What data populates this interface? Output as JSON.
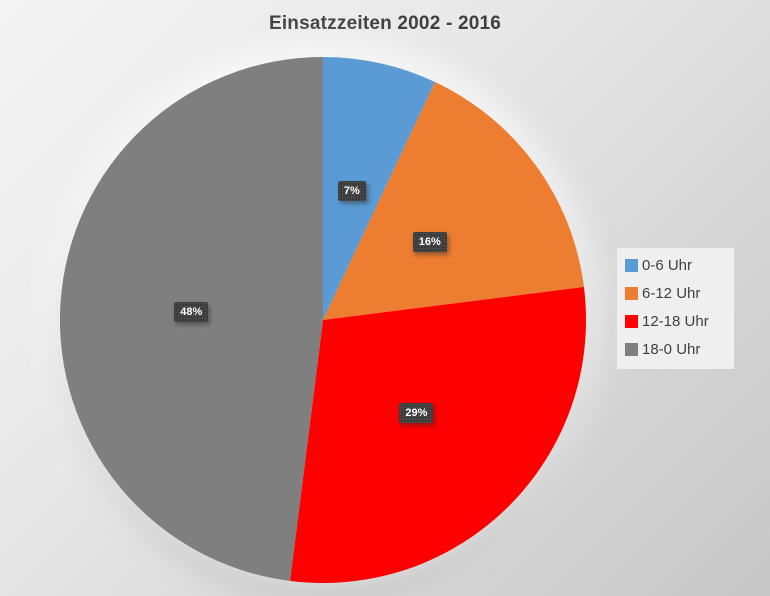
{
  "chart_data": {
    "type": "pie",
    "title": "Einsatzzeiten 2002 - 2016",
    "categories": [
      "0-6 Uhr",
      "6-12 Uhr",
      "12-18 Uhr",
      "18-0 Uhr"
    ],
    "values": [
      7,
      16,
      29,
      48
    ],
    "data_labels": [
      "7%",
      "16%",
      "29%",
      "48%"
    ],
    "colors": [
      "#5B9BD5",
      "#ED7D31",
      "#FF0000",
      "#7F7F7F"
    ],
    "start_angle_deg": 0,
    "direction": "clockwise",
    "legend_position": "right",
    "style": {
      "title_color": "#3F3F3F",
      "data_label_background": "#3A3A3A",
      "data_label_text_color": "#FFFFFF",
      "legend_background": "#EFEFEF",
      "legend_text_color": "#404040",
      "background_gradient": [
        "#F4F4F4",
        "#C7C7C7"
      ]
    }
  }
}
